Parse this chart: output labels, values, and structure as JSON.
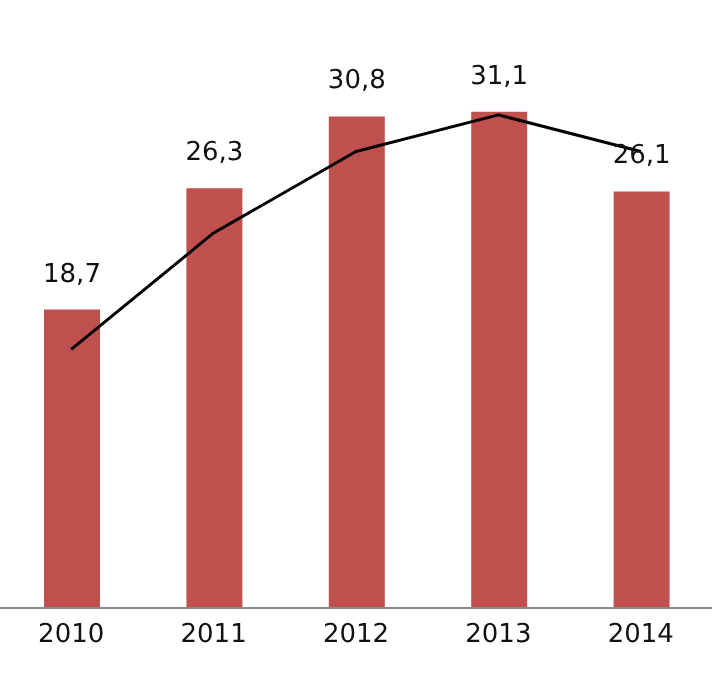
{
  "chart_data": {
    "type": "bar",
    "categories": [
      "2010",
      "2011",
      "2012",
      "2013",
      "2014"
    ],
    "series": [
      {
        "color": "#c0504d",
        "values": [
          18.7,
          26.3,
          30.8,
          31.1,
          26.1
        ],
        "value_labels": [
          "18,7",
          "26,3",
          "30,8",
          "31,1",
          "26,1"
        ]
      },
      {
        "type": "line",
        "color": "#000000",
        "values": [
          16.2,
          23.5,
          28.6,
          30.9,
          28.6
        ],
        "marker": "none",
        "line_style": "solid"
      }
    ],
    "legend": false,
    "grid": false,
    "tick_labels": "x"
  }
}
